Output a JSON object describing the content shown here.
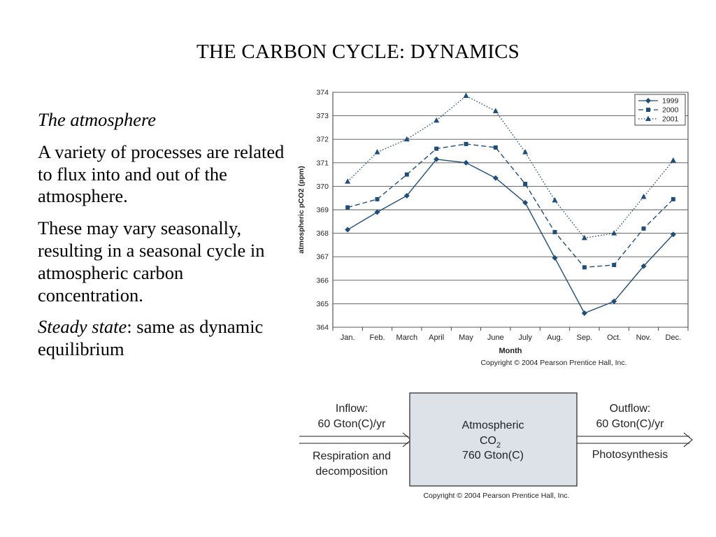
{
  "slide": {
    "title": "THE CARBON CYCLE: DYNAMICS",
    "heading": "The atmosphere",
    "para1": "A variety of processes are related to flux into and out of the atmosphere.",
    "para2": "These may vary seasonally, resulting in a seasonal cycle in atmospheric carbon concentration.",
    "para3_italic": "Steady state",
    "para3_rest": ": same as dynamic equilibrium"
  },
  "chart_data": {
    "type": "line",
    "xlabel": "Month",
    "ylabel": "atmospheric pCO2 (ppm)",
    "categories": [
      "Jan.",
      "Feb.",
      "March",
      "April",
      "May",
      "June",
      "July",
      "Aug.",
      "Sep.",
      "Oct.",
      "Nov.",
      "Dec."
    ],
    "ylim": [
      364,
      374
    ],
    "yticks": [
      364,
      365,
      366,
      367,
      368,
      369,
      370,
      371,
      372,
      373,
      374
    ],
    "grid": true,
    "legend_position": "top-right",
    "copyright": "Copyright © 2004 Pearson Prentice Hall, Inc.",
    "series": [
      {
        "name": "1999",
        "style": "solid",
        "marker": "diamond",
        "color": "#1f4e79",
        "values": [
          368.15,
          368.9,
          369.6,
          371.15,
          371.0,
          370.35,
          369.3,
          366.95,
          364.6,
          365.1,
          366.6,
          367.95
        ]
      },
      {
        "name": "2000",
        "style": "dashed",
        "marker": "square",
        "color": "#1f4e79",
        "values": [
          369.1,
          369.45,
          370.5,
          371.6,
          371.8,
          371.65,
          370.1,
          368.05,
          366.55,
          366.65,
          368.2,
          369.45
        ]
      },
      {
        "name": "2001",
        "style": "dotted",
        "marker": "triangle",
        "color": "#1f4e79",
        "values": [
          370.2,
          371.45,
          372.0,
          372.8,
          373.85,
          373.2,
          371.45,
          369.4,
          367.8,
          368.0,
          369.55,
          371.1
        ]
      }
    ]
  },
  "flow": {
    "inflow_label": "Inflow:",
    "inflow_value": "60 Gton(C)/yr",
    "inflow_process_line1": "Respiration and",
    "inflow_process_line2": "decomposition",
    "box_line1": "Atmospheric",
    "box_co": "CO",
    "box_sub": "2",
    "box_line3": "760 Gton(C)",
    "outflow_label": "Outflow:",
    "outflow_value": "60 Gton(C)/yr",
    "outflow_process": "Photosynthesis",
    "copyright": "Copyright © 2004 Pearson Prentice Hall, Inc.",
    "box_fill": "#dde1e8"
  }
}
